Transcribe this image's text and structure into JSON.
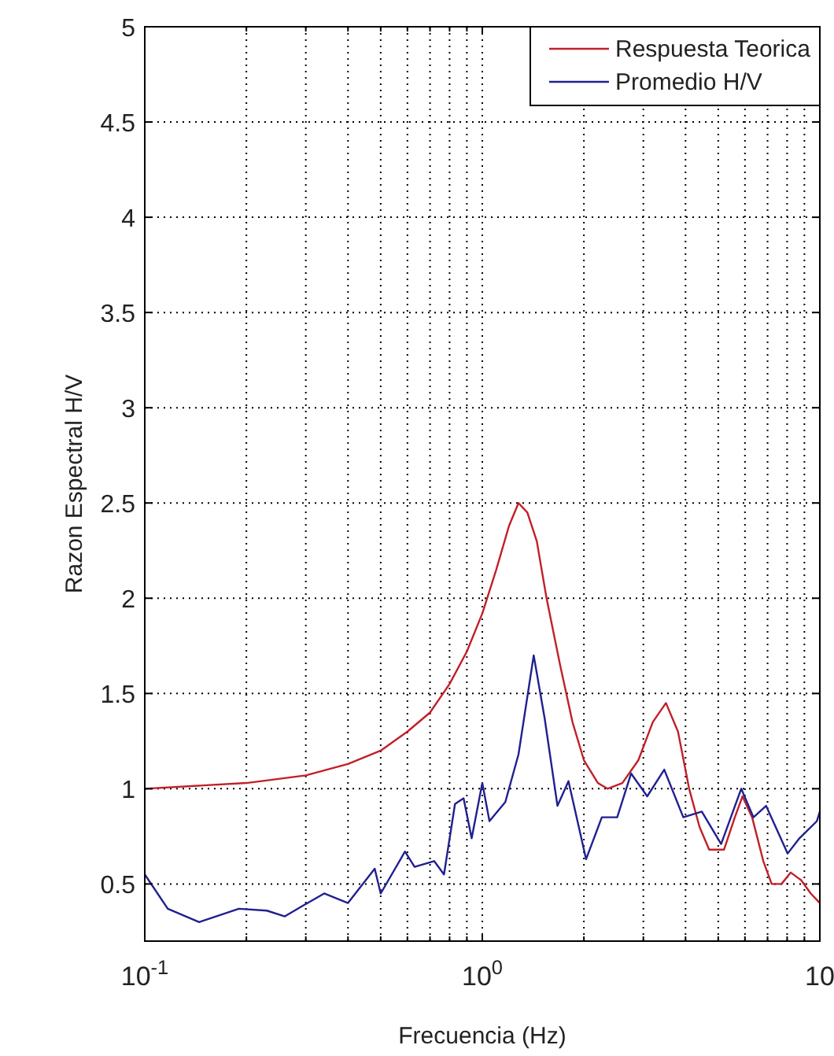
{
  "chart_data": {
    "type": "line",
    "xlabel": "Frecuencia (Hz)",
    "ylabel": "Razon Espectral H/V",
    "log": "x",
    "grid": true,
    "legend": "top right",
    "line_style": "solid",
    "marker": "none",
    "xlim": [
      0.1,
      10
    ],
    "ylim": [
      0.2,
      5
    ],
    "xticks": [
      {
        "value": 0.1,
        "label": "10$^{-1}$"
      },
      {
        "value": 0.2,
        "label": null
      },
      {
        "value": 0.3,
        "label": null
      },
      {
        "value": 0.4,
        "label": null
      },
      {
        "value": 0.5,
        "label": null
      },
      {
        "value": 0.6,
        "label": null
      },
      {
        "value": 0.7,
        "label": null
      },
      {
        "value": 0.8,
        "label": null
      },
      {
        "value": 0.9,
        "label": null
      },
      {
        "value": 1,
        "label": "10$^{0}$"
      },
      {
        "value": 2,
        "label": null
      },
      {
        "value": 3,
        "label": null
      },
      {
        "value": 4,
        "label": null
      },
      {
        "value": 5,
        "label": null
      },
      {
        "value": 6,
        "label": null
      },
      {
        "value": 7,
        "label": null
      },
      {
        "value": 8,
        "label": null
      },
      {
        "value": 9,
        "label": null
      },
      {
        "value": 10,
        "label": "10"
      }
    ],
    "yticks": [
      0.5,
      1,
      1.5,
      2,
      2.5,
      3,
      3.5,
      4,
      4.5,
      5
    ],
    "series": [
      {
        "name": "Respuesta Teorica",
        "color": "#c0202a",
        "x": [
          0.1,
          0.2,
          0.3,
          0.4,
          0.5,
          0.6,
          0.7,
          0.8,
          0.9,
          1.0,
          1.1,
          1.2,
          1.28,
          1.36,
          1.45,
          1.55,
          1.7,
          1.85,
          2.0,
          2.2,
          2.35,
          2.6,
          2.9,
          3.2,
          3.5,
          3.8,
          4.1,
          4.4,
          4.7,
          5.2,
          5.6,
          5.9,
          6.3,
          6.8,
          7.2,
          7.7,
          8.2,
          8.8,
          9.4,
          10
        ],
        "values": [
          1.0,
          1.03,
          1.07,
          1.13,
          1.2,
          1.3,
          1.4,
          1.55,
          1.72,
          1.92,
          2.15,
          2.38,
          2.5,
          2.45,
          2.3,
          2.0,
          1.65,
          1.35,
          1.15,
          1.03,
          1.0,
          1.03,
          1.15,
          1.35,
          1.45,
          1.3,
          1.0,
          0.8,
          0.68,
          0.68,
          0.85,
          0.96,
          0.85,
          0.62,
          0.5,
          0.5,
          0.56,
          0.52,
          0.45,
          0.4
        ]
      },
      {
        "name": "Promedio H/V",
        "color": "#202090",
        "x": [
          0.1,
          0.117,
          0.145,
          0.19,
          0.23,
          0.26,
          0.29,
          0.34,
          0.4,
          0.48,
          0.5,
          0.59,
          0.63,
          0.72,
          0.77,
          0.83,
          0.88,
          0.93,
          1.0,
          1.05,
          1.17,
          1.28,
          1.42,
          1.53,
          1.67,
          1.8,
          2.03,
          2.26,
          2.51,
          2.76,
          3.08,
          3.46,
          3.94,
          4.47,
          5.1,
          5.85,
          6.36,
          6.93,
          8.03,
          8.7,
          9.8,
          10
        ],
        "values": [
          0.55,
          0.37,
          0.3,
          0.37,
          0.36,
          0.33,
          0.38,
          0.45,
          0.4,
          0.58,
          0.45,
          0.67,
          0.59,
          0.62,
          0.55,
          0.92,
          0.95,
          0.74,
          1.03,
          0.83,
          0.93,
          1.18,
          1.7,
          1.37,
          0.91,
          1.04,
          0.63,
          0.85,
          0.85,
          1.08,
          0.96,
          1.1,
          0.85,
          0.88,
          0.71,
          1.0,
          0.85,
          0.91,
          0.66,
          0.74,
          0.83,
          0.88
        ]
      }
    ]
  }
}
